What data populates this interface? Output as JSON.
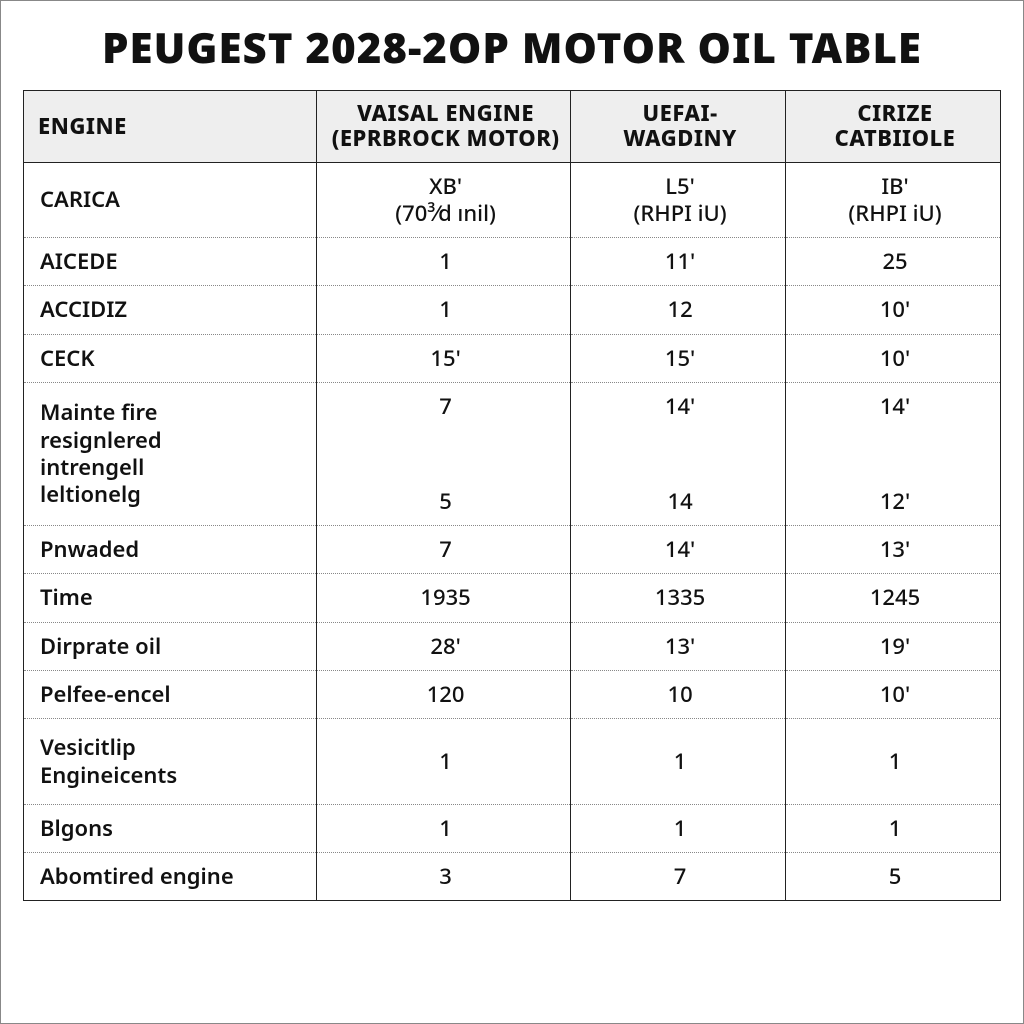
{
  "title": "PEUGEST 2028-2OP MOTOR OIL TABLE",
  "table": {
    "columns": [
      {
        "line1": "ENGINE",
        "line2": ""
      },
      {
        "line1": "VAISAL ENGINE",
        "line2": "(EPRBROCK MOTOR)"
      },
      {
        "line1": "UEFAI-",
        "line2": "WAGDINY"
      },
      {
        "line1": "CIRIZE",
        "line2": "CATBIIOLE"
      }
    ],
    "rows": [
      {
        "label": "CARICA",
        "c1a": "XB'",
        "c1b": "(70³⁄d ınil)",
        "c2a": "L5'",
        "c2b": "(RHPI iU)",
        "c3a": "IB'",
        "c3b": "(RHPI iU)",
        "twoLine": true
      },
      {
        "label": "AICEDE",
        "c1": "1",
        "c2": "11'",
        "c3": "25"
      },
      {
        "label": "ACCIDIZ",
        "c1": "1",
        "c2": "12",
        "c3": "10'"
      },
      {
        "label": "CECK",
        "c1": "15'",
        "c2": "15'",
        "c3": "10'"
      },
      {
        "tall": true,
        "labelLines": [
          "Mainte fire",
          "resignlered",
          "intrengell",
          "leltionelg"
        ],
        "c1s": [
          "7",
          "5"
        ],
        "c2s": [
          "14'",
          "14"
        ],
        "c3s": [
          "14'",
          "12'"
        ]
      },
      {
        "label": "Pnwaded",
        "c1": "7",
        "c2": "14'",
        "c3": "13'"
      },
      {
        "label": "Time",
        "c1": "1935",
        "c2": "1335",
        "c3": "1245"
      },
      {
        "label": "Dirprate oil",
        "c1": "28'",
        "c2": "13'",
        "c3": "19'"
      },
      {
        "label": "Pelfee-encel",
        "c1": "120",
        "c2": "10",
        "c3": "10'"
      },
      {
        "labelLines": [
          "Vesicitlip",
          "Engineicents"
        ],
        "c1": "1",
        "c2": "1",
        "c3": "1",
        "extraPad": true
      },
      {
        "label": "Blgons",
        "c1": "1",
        "c2": "1",
        "c3": "1"
      },
      {
        "label": "Abomtired engine",
        "c1": "3",
        "c2": "7",
        "c3": "5"
      }
    ],
    "header_bg": "#eeeeee",
    "border_color": "#222222",
    "dotted_color": "#888888",
    "background_color": "#ffffff",
    "title_fontsize": 42,
    "header_fontsize": 22,
    "cell_fontsize": 22
  }
}
